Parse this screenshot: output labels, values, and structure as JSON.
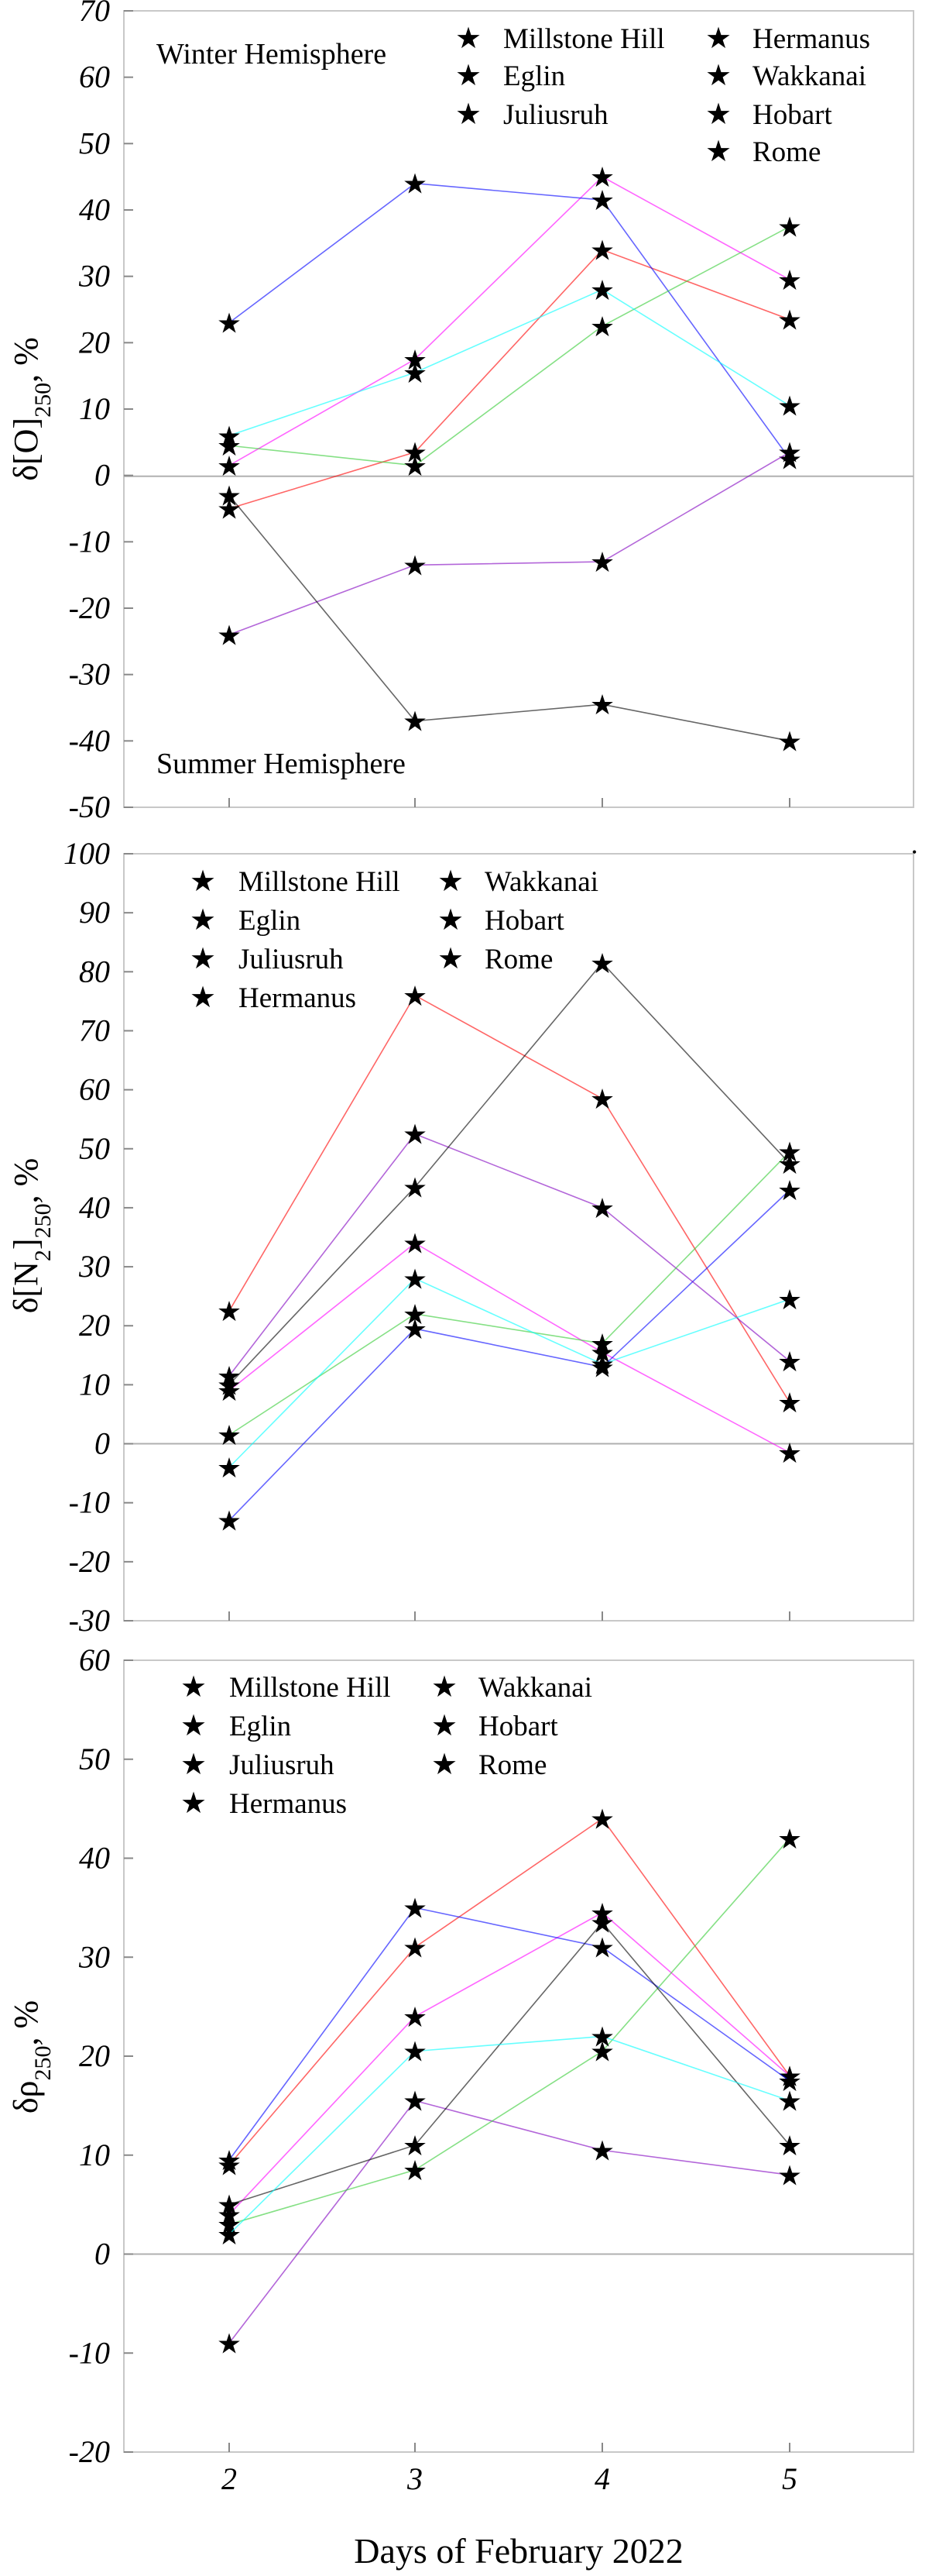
{
  "chart_data": [
    {
      "type": "line",
      "title": "",
      "ylabel": "δ[O]250, %",
      "ylabel_base": "δ[O]",
      "ylabel_sub": "250",
      "ylabel_tail": ", %",
      "ylim": [
        -50,
        70
      ],
      "yticks": [
        -50,
        -40,
        -30,
        -20,
        -10,
        0,
        10,
        20,
        30,
        40,
        50,
        60,
        70
      ],
      "xticks": [
        2,
        3,
        4,
        5
      ],
      "legend_position": "top-right",
      "annotations": {
        "top": "Winter Hemisphere",
        "bottom": "Summer Hemisphere"
      },
      "series": [
        {
          "name": "Millstone Hill",
          "color": "#ff0000",
          "values": [
            -5,
            3.5,
            34,
            23.5
          ]
        },
        {
          "name": "Eglin",
          "color": "#ff00ff",
          "values": [
            1.5,
            17.5,
            45,
            29.5
          ]
        },
        {
          "name": "Juliusruh",
          "color": "#0000ff",
          "values": [
            23,
            44,
            41.5,
            2.5
          ]
        },
        {
          "name": "Hermanus",
          "color": "#8000c0",
          "values": [
            -24,
            -13.5,
            -13,
            3.5
          ]
        },
        {
          "name": "Wakkanai",
          "color": "#33cc33",
          "values": [
            4.5,
            1.5,
            22.5,
            37.5
          ]
        },
        {
          "name": "Hobart",
          "color": "#000000",
          "values": [
            -3,
            -37,
            -34.5,
            -40
          ]
        },
        {
          "name": "Rome",
          "color": "#00ffff",
          "values": [
            6,
            15.5,
            28,
            10.5
          ]
        }
      ]
    },
    {
      "type": "line",
      "title": "",
      "ylabel": "δ[N2]250, %",
      "ylabel_base": "δ[N",
      "ylabel_sub1": "2",
      "ylabel_mid": "]",
      "ylabel_sub2": "250",
      "ylabel_tail": ", %",
      "ylim": [
        -30,
        100
      ],
      "yticks": [
        -30,
        -20,
        -10,
        0,
        10,
        20,
        30,
        40,
        50,
        60,
        70,
        80,
        90,
        100
      ],
      "xticks": [
        2,
        3,
        4,
        5
      ],
      "legend_position": "top-left",
      "series": [
        {
          "name": "Millstone Hill",
          "color": "#ff0000",
          "values": [
            22.5,
            76,
            58.5,
            7
          ]
        },
        {
          "name": "Eglin",
          "color": "#ff00ff",
          "values": [
            9,
            34,
            15.5,
            -1.5
          ]
        },
        {
          "name": "Juliusruh",
          "color": "#0000ff",
          "values": [
            -13,
            19.5,
            13,
            43
          ]
        },
        {
          "name": "Hermanus",
          "color": "#8000c0",
          "values": [
            11.5,
            52.5,
            40,
            14
          ]
        },
        {
          "name": "Wakkanai",
          "color": "#33cc33",
          "values": [
            1.5,
            22,
            17,
            49.5
          ]
        },
        {
          "name": "Hobart",
          "color": "#000000",
          "values": [
            10,
            43.5,
            81.5,
            47.5
          ]
        },
        {
          "name": "Rome",
          "color": "#00ffff",
          "values": [
            -4,
            28,
            13.5,
            24.5
          ]
        }
      ]
    },
    {
      "type": "line",
      "title": "",
      "ylabel": "δρ250, %",
      "ylabel_base": "δρ",
      "ylabel_sub": "250",
      "ylabel_tail": ", %",
      "xlabel": "Days of February 2022",
      "ylim": [
        -20,
        60
      ],
      "yticks": [
        -20,
        -10,
        0,
        10,
        20,
        30,
        40,
        50,
        60
      ],
      "xticks": [
        2,
        3,
        4,
        5
      ],
      "legend_position": "top-left",
      "series": [
        {
          "name": "Millstone Hill",
          "color": "#ff0000",
          "values": [
            9,
            31,
            44,
            18
          ]
        },
        {
          "name": "Eglin",
          "color": "#ff00ff",
          "values": [
            4,
            24,
            34.5,
            18
          ]
        },
        {
          "name": "Juliusruh",
          "color": "#0000ff",
          "values": [
            9.5,
            35,
            31,
            17.5
          ]
        },
        {
          "name": "Hermanus",
          "color": "#8000c0",
          "values": [
            -9,
            15.5,
            10.5,
            8
          ]
        },
        {
          "name": "Wakkanai",
          "color": "#33cc33",
          "values": [
            3,
            8.5,
            20.5,
            42
          ]
        },
        {
          "name": "Hobart",
          "color": "#000000",
          "values": [
            5,
            11,
            33.5,
            11
          ]
        },
        {
          "name": "Rome",
          "color": "#00ffff",
          "values": [
            2,
            20.5,
            22,
            15.5
          ]
        }
      ]
    }
  ]
}
